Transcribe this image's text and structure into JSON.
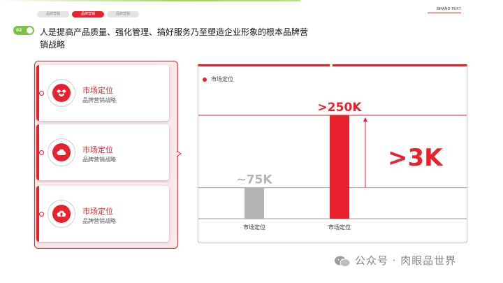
{
  "header": {
    "tabs": [
      {
        "label": "品牌营销",
        "active": false
      },
      {
        "label": "品牌营销",
        "active": true
      },
      {
        "label": "品牌营销",
        "active": false
      }
    ],
    "brand_text": "BRAND TEXT",
    "section_number": "02",
    "headline": "人是提高产品质量、强化管理、搞好服务乃至塑造企业形象的根本品牌营销战略"
  },
  "cards": [
    {
      "title": "市场定位",
      "subtitle": "品牌营销战略",
      "icon": "box-icon"
    },
    {
      "title": "市场定位",
      "subtitle": "品牌营销战略",
      "icon": "cloud-icon"
    },
    {
      "title": "市场定位",
      "subtitle": "品牌营销战略",
      "icon": "cloud-upload-icon"
    }
  ],
  "chart_data": {
    "type": "bar",
    "legend": [
      "市场定位"
    ],
    "categories": [
      "市场定位",
      "市场定位"
    ],
    "values": [
      75000,
      250000
    ],
    "data_labels": [
      "~75K",
      ">250K"
    ],
    "bar_colors": [
      "#b3b3b3",
      "#e8212c"
    ],
    "annotation": ">3K",
    "ylim": [
      0,
      250000
    ],
    "grid": false
  },
  "colors": {
    "accent": "#e8212c",
    "green": "#7cc242"
  },
  "watermark": "公众号 · 肉眼品世界"
}
